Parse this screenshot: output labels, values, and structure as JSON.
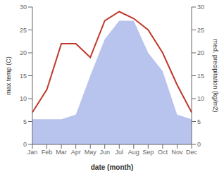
{
  "chart_data": {
    "type": "line",
    "xlabel": "date (month)",
    "ylabel": "max temp (C)",
    "y2label": "med. precipitation (kg/m2)",
    "categories": [
      "Jan",
      "Feb",
      "Mar",
      "Apr",
      "May",
      "Jun",
      "Jul",
      "Aug",
      "Sep",
      "Oct",
      "Nov",
      "Dec"
    ],
    "series": [
      {
        "type": "area",
        "color": "#b8c4ee",
        "axis": "y2",
        "values": [
          5.5,
          5.5,
          5.5,
          6.5,
          15,
          23,
          27,
          27,
          20,
          16,
          6.5,
          5.5
        ]
      },
      {
        "type": "line",
        "color": "#c0392b",
        "values": [
          7,
          12,
          22,
          22,
          19,
          27,
          29,
          27.5,
          25,
          20,
          13,
          7
        ]
      }
    ],
    "ylim": [
      0,
      30
    ],
    "yticks": [
      0,
      5,
      10,
      15,
      20,
      25,
      30
    ],
    "y2lim": [
      0,
      30
    ],
    "y2ticks": [
      0,
      5,
      10,
      15,
      20,
      25,
      30
    ],
    "grid": false
  }
}
